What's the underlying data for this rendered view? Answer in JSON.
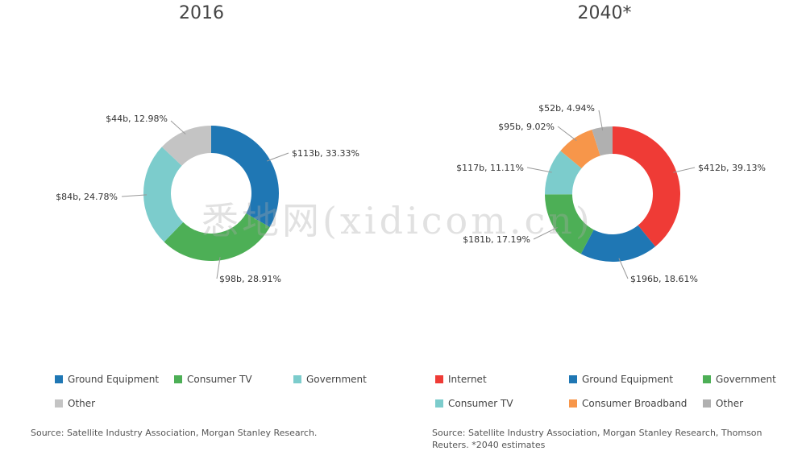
{
  "charts": [
    {
      "title": "2016",
      "chart_data": {
        "type": "pie",
        "title": "2016",
        "series": [
          {
            "name": "Ground Equipment",
            "value": 113,
            "percent": 33.33,
            "label": "$113b, 33.33%",
            "color": "#1f77b4"
          },
          {
            "name": "Consumer TV",
            "value": 98,
            "percent": 28.91,
            "label": "$98b, 28.91%",
            "color": "#4daf56"
          },
          {
            "name": "Government",
            "value": 84,
            "percent": 24.78,
            "label": "$84b, 24.78%",
            "color": "#7ccccc"
          },
          {
            "name": "Other",
            "value": 44,
            "percent": 12.98,
            "label": "$44b, 12.98%",
            "color": "#c4c4c4"
          }
        ],
        "legend": "bottom"
      },
      "legend_items": [
        "Ground Equipment",
        "Consumer TV",
        "Government",
        "Other"
      ],
      "source": "Source: Satellite Industry Association, Morgan Stanley Research."
    },
    {
      "title": "2040*",
      "chart_data": {
        "type": "pie",
        "title": "2040*",
        "series": [
          {
            "name": "Internet",
            "value": 412,
            "percent": 39.13,
            "label": "$412b, 39.13%",
            "color": "#ef3b36"
          },
          {
            "name": "Ground Equipment",
            "value": 196,
            "percent": 18.61,
            "label": "$196b, 18.61%",
            "color": "#1f77b4"
          },
          {
            "name": "Government",
            "value": 181,
            "percent": 17.19,
            "label": "$181b, 17.19%",
            "color": "#4daf56"
          },
          {
            "name": "Consumer TV",
            "value": 117,
            "percent": 11.11,
            "label": "$117b, 11.11%",
            "color": "#7ccccc"
          },
          {
            "name": "Consumer Broadband",
            "value": 95,
            "percent": 9.02,
            "label": "$95b, 9.02%",
            "color": "#f7964a"
          },
          {
            "name": "Other",
            "value": 52,
            "percent": 4.94,
            "label": "$52b, 4.94%",
            "color": "#b0b0b0"
          }
        ],
        "legend": "bottom"
      },
      "legend_items": [
        "Internet",
        "Ground Equipment",
        "Government",
        "Consumer TV",
        "Consumer Broadband",
        "Other"
      ],
      "source": "Source: Satellite Industry Association, Morgan Stanley Research, Thomson Reuters. *2040 estimates"
    }
  ],
  "watermark": "悉地网(xidicom.cn)"
}
